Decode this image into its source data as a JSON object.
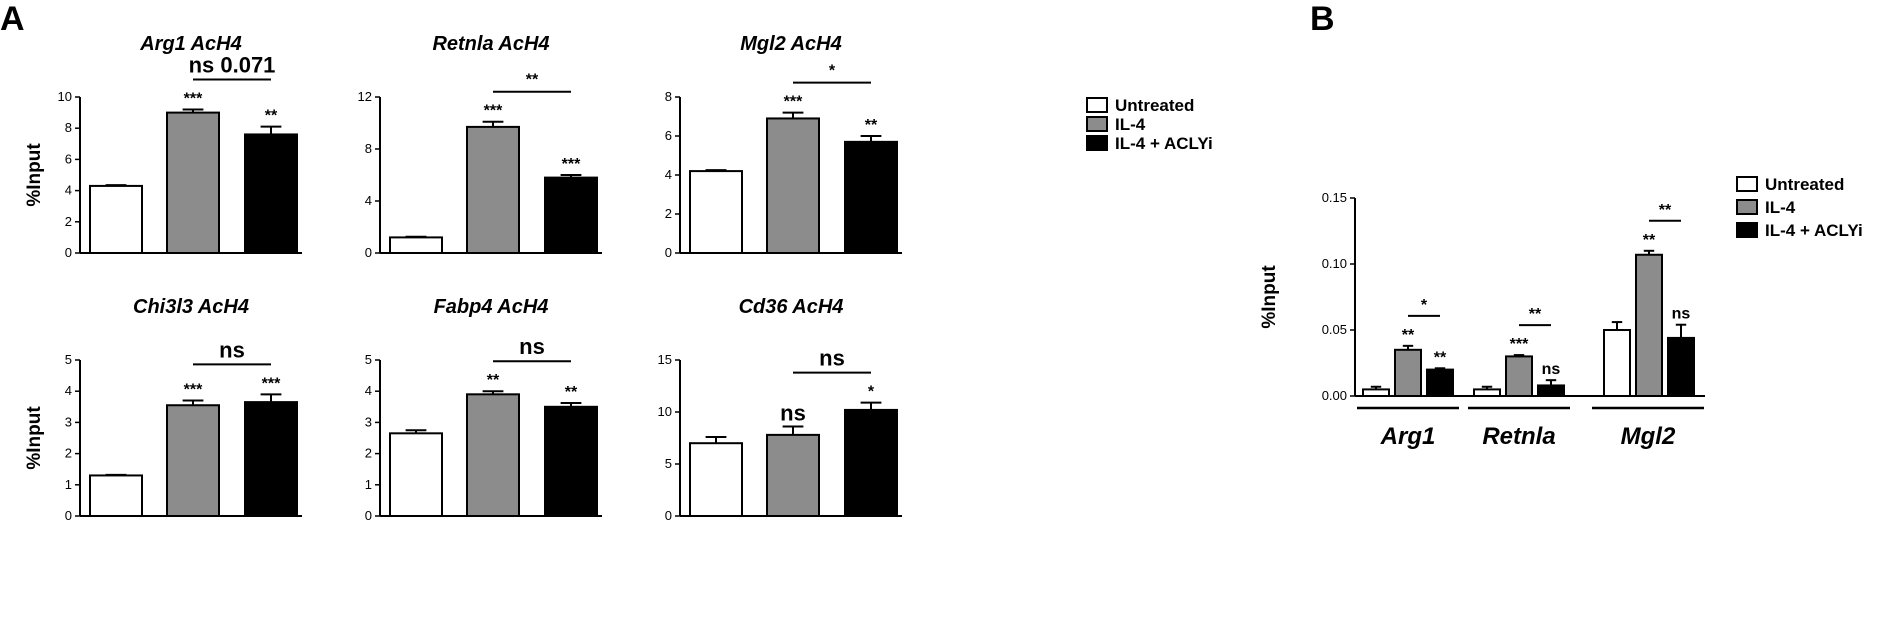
{
  "panels": [
    {
      "letter": "A"
    },
    {
      "letter": "B"
    }
  ],
  "legend": [
    {
      "label": "Untreated",
      "color": "#ffffff"
    },
    {
      "label": "IL-4",
      "color": "#8c8c8c"
    },
    {
      "label": "IL-4 + ACLYi",
      "color": "#000000"
    }
  ],
  "chart_data": [
    {
      "type": "bar",
      "title": "Arg1 AcH4",
      "ylabel": "%Input",
      "ylim": [
        0,
        10
      ],
      "yticks": [
        "0",
        "2",
        "4",
        "6",
        "8",
        "10"
      ],
      "categories": [
        "Untreated",
        "IL-4",
        "IL-4 + ACLYi"
      ],
      "values": [
        4.3,
        9.0,
        7.6
      ],
      "errors": [
        0.05,
        0.2,
        0.5
      ],
      "stars": [
        "",
        "***",
        "**"
      ],
      "brackets": [
        {
          "from": 1,
          "to": 2,
          "label": "ns 0.071"
        }
      ]
    },
    {
      "type": "bar",
      "title": "Retnla AcH4",
      "ylabel": "",
      "ylim": [
        0,
        12
      ],
      "yticks": [
        "0",
        "4",
        "8",
        "12"
      ],
      "categories": [
        "Untreated",
        "IL-4",
        "IL-4 + ACLYi"
      ],
      "values": [
        1.2,
        9.7,
        5.8
      ],
      "errors": [
        0.05,
        0.4,
        0.2
      ],
      "stars": [
        "",
        "***",
        "***"
      ],
      "brackets": [
        {
          "from": 1,
          "to": 2,
          "label": "**"
        }
      ]
    },
    {
      "type": "bar",
      "title": "Mgl2 AcH4",
      "ylabel": "",
      "ylim": [
        0,
        8
      ],
      "yticks": [
        "0",
        "2",
        "4",
        "6",
        "8"
      ],
      "categories": [
        "Untreated",
        "IL-4",
        "IL-4 + ACLYi"
      ],
      "values": [
        4.2,
        6.9,
        5.7
      ],
      "errors": [
        0.05,
        0.3,
        0.3
      ],
      "stars": [
        "",
        "***",
        "**"
      ],
      "brackets": [
        {
          "from": 1,
          "to": 2,
          "label": "*"
        }
      ]
    },
    {
      "type": "bar",
      "title": "Chi3l3 AcH4",
      "ylabel": "%Input",
      "ylim": [
        0,
        5
      ],
      "yticks": [
        "0",
        "1",
        "2",
        "3",
        "4",
        "5"
      ],
      "categories": [
        "Untreated",
        "IL-4",
        "IL-4 + ACLYi"
      ],
      "values": [
        1.3,
        3.55,
        3.65
      ],
      "errors": [
        0.02,
        0.15,
        0.25
      ],
      "stars": [
        "",
        "***",
        "***"
      ],
      "brackets": [
        {
          "from": 1,
          "to": 2,
          "label": "ns"
        }
      ]
    },
    {
      "type": "bar",
      "title": "Fabp4 AcH4",
      "ylabel": "",
      "ylim": [
        0,
        5
      ],
      "yticks": [
        "0",
        "1",
        "2",
        "3",
        "4",
        "5"
      ],
      "categories": [
        "Untreated",
        "IL-4",
        "IL-4 + ACLYi"
      ],
      "values": [
        2.65,
        3.9,
        3.5
      ],
      "errors": [
        0.1,
        0.1,
        0.12
      ],
      "stars": [
        "",
        "**",
        "**"
      ],
      "brackets": [
        {
          "from": 1,
          "to": 2,
          "label": "ns"
        }
      ]
    },
    {
      "type": "bar",
      "title": "Cd36 AcH4",
      "ylabel": "",
      "ylim": [
        0,
        15
      ],
      "yticks": [
        "0",
        "5",
        "10",
        "15"
      ],
      "categories": [
        "Untreated",
        "IL-4",
        "IL-4 + ACLYi"
      ],
      "values": [
        7.0,
        7.8,
        10.2
      ],
      "errors": [
        0.6,
        0.8,
        0.7
      ],
      "stars": [
        "",
        "ns",
        "*"
      ],
      "brackets": [
        {
          "from": 1,
          "to": 2,
          "label": "ns"
        }
      ]
    },
    {
      "type": "bar",
      "title": "",
      "ylabel": "%Input",
      "ylim": [
        0,
        0.15
      ],
      "yticks": [
        "0.00",
        "0.05",
        "0.10",
        "0.15"
      ],
      "categories": [
        "Arg1",
        "Retnla",
        "Mgl2"
      ],
      "series": [
        {
          "name": "Untreated",
          "values": [
            0.005,
            0.005,
            0.05
          ],
          "errors": [
            0.002,
            0.002,
            0.006
          ],
          "stars": [
            "",
            "",
            ""
          ]
        },
        {
          "name": "IL-4",
          "values": [
            0.035,
            0.03,
            0.107
          ],
          "errors": [
            0.003,
            0.001,
            0.003
          ],
          "stars": [
            "**",
            "***",
            "**"
          ]
        },
        {
          "name": "IL-4 + ACLYi",
          "values": [
            0.02,
            0.008,
            0.044
          ],
          "errors": [
            0.001,
            0.004,
            0.01
          ],
          "stars": [
            "**",
            "ns",
            "ns"
          ]
        }
      ],
      "brackets": [
        {
          "group": 0,
          "label": "*"
        },
        {
          "group": 1,
          "label": "**"
        },
        {
          "group": 2,
          "label": "**"
        }
      ]
    }
  ]
}
